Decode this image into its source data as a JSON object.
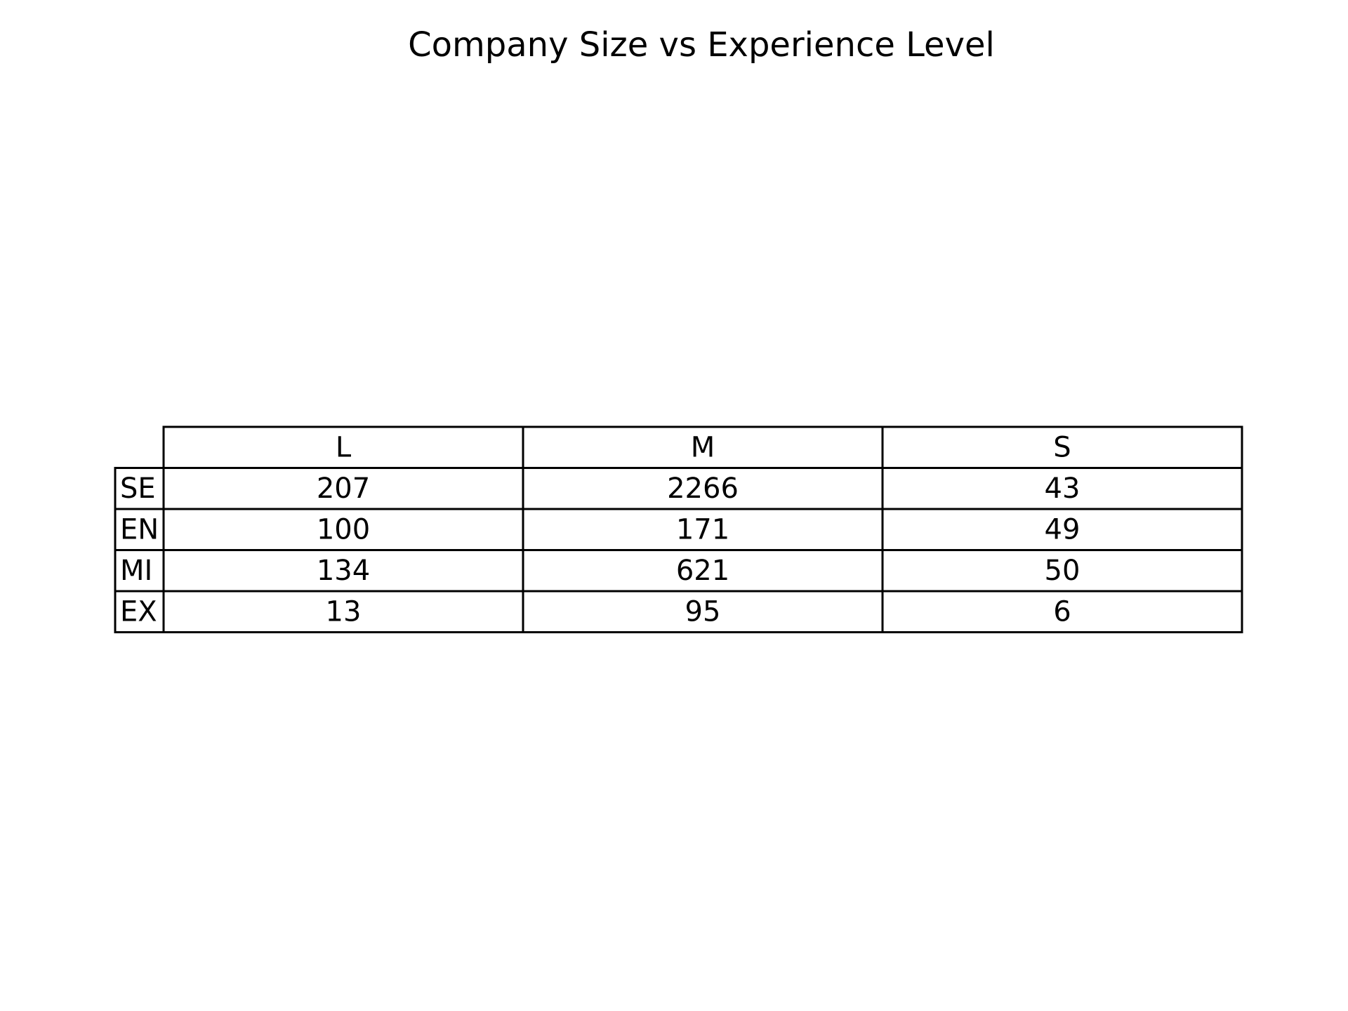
{
  "chart_data": {
    "type": "table",
    "title": "Company Size vs Experience Level",
    "columns": [
      "L",
      "M",
      "S"
    ],
    "rows": [
      {
        "label": "SE",
        "values": [
          207,
          2266,
          43
        ]
      },
      {
        "label": "EN",
        "values": [
          100,
          171,
          49
        ]
      },
      {
        "label": "MI",
        "values": [
          134,
          621,
          50
        ]
      },
      {
        "label": "EX",
        "values": [
          13,
          95,
          6
        ]
      }
    ],
    "border_color": "#000000",
    "background": "#ffffff"
  }
}
